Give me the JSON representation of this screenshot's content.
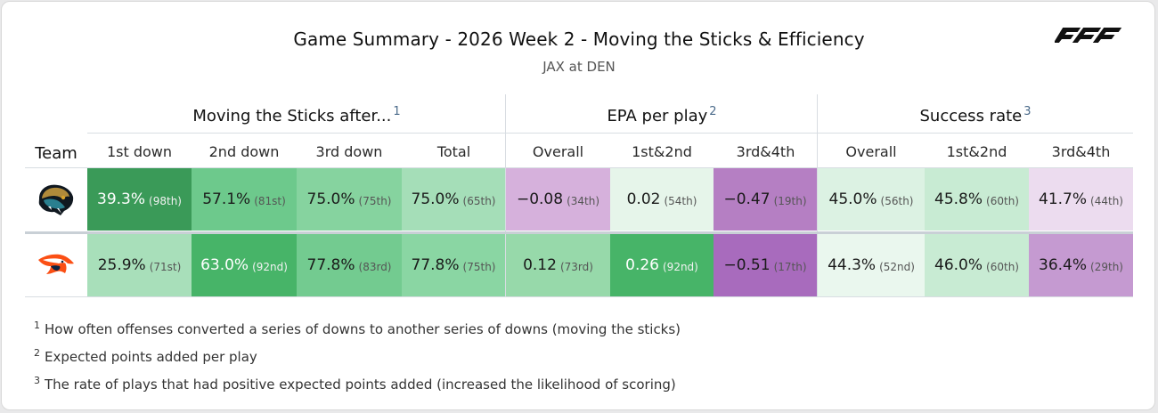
{
  "title": "Game Summary - 2026 Week 2 - Moving the Sticks & Efficiency",
  "subtitle": "JAX at DEN",
  "brand": {
    "logo_icon": "pff-logo-icon"
  },
  "groups": [
    {
      "label": "Moving the Sticks after...",
      "note": "1"
    },
    {
      "label": "EPA per play",
      "note": "2"
    },
    {
      "label": "Success rate",
      "note": "3"
    }
  ],
  "team_header": "Team",
  "columns": [
    "1st down",
    "2nd down",
    "3rd down",
    "Total",
    "Overall",
    "1st&2nd",
    "3rd&4th",
    "Overall",
    "1st&2nd",
    "3rd&4th"
  ],
  "rows": [
    {
      "team_icon": "jaguars-logo-icon",
      "cells": [
        {
          "value": "39.3%",
          "rank": "(98th)",
          "bg": "#3a9a58",
          "tone": "dark"
        },
        {
          "value": "57.1%",
          "rank": "(81st)",
          "bg": "#6dc98c",
          "tone": "light"
        },
        {
          "value": "75.0%",
          "rank": "(75th)",
          "bg": "#86d39f",
          "tone": "light"
        },
        {
          "value": "75.0%",
          "rank": "(65th)",
          "bg": "#a5deb8",
          "tone": "light"
        },
        {
          "value": "−0.08",
          "rank": "(34th)",
          "bg": "#d6b1dc",
          "tone": "light"
        },
        {
          "value": "0.02",
          "rank": "(54th)",
          "bg": "#e6f5ea",
          "tone": "light"
        },
        {
          "value": "−0.47",
          "rank": "(19th)",
          "bg": "#b57fc3",
          "tone": "light"
        },
        {
          "value": "45.0%",
          "rank": "(56th)",
          "bg": "#dcf2e3",
          "tone": "light"
        },
        {
          "value": "45.8%",
          "rank": "(60th)",
          "bg": "#c8ebd3",
          "tone": "light"
        },
        {
          "value": "41.7%",
          "rank": "(44th)",
          "bg": "#ecdcef",
          "tone": "light"
        }
      ]
    },
    {
      "team_icon": "broncos-logo-icon",
      "cells": [
        {
          "value": "25.9%",
          "rank": "(71st)",
          "bg": "#a8dfba",
          "tone": "light"
        },
        {
          "value": "63.0%",
          "rank": "(92nd)",
          "bg": "#47b468",
          "tone": "dark"
        },
        {
          "value": "77.8%",
          "rank": "(83rd)",
          "bg": "#73cb90",
          "tone": "light"
        },
        {
          "value": "77.8%",
          "rank": "(75th)",
          "bg": "#8ad6a3",
          "tone": "light"
        },
        {
          "value": "0.12",
          "rank": "(73rd)",
          "bg": "#97d9aa",
          "tone": "light"
        },
        {
          "value": "0.26",
          "rank": "(92nd)",
          "bg": "#47b468",
          "tone": "dark"
        },
        {
          "value": "−0.51",
          "rank": "(17th)",
          "bg": "#a86bbd",
          "tone": "light"
        },
        {
          "value": "44.3%",
          "rank": "(52nd)",
          "bg": "#eaf7ee",
          "tone": "light"
        },
        {
          "value": "46.0%",
          "rank": "(60th)",
          "bg": "#c8ebd3",
          "tone": "light"
        },
        {
          "value": "36.4%",
          "rank": "(29th)",
          "bg": "#c59ad1",
          "tone": "light"
        }
      ]
    }
  ],
  "footnotes": [
    {
      "num": "1",
      "text": "How often offenses converted a series of downs to another series of downs (moving the sticks)"
    },
    {
      "num": "2",
      "text": "Expected points added per play"
    },
    {
      "num": "3",
      "text": "The rate of plays that had positive expected points added (increased the likelihood of scoring)"
    }
  ]
}
